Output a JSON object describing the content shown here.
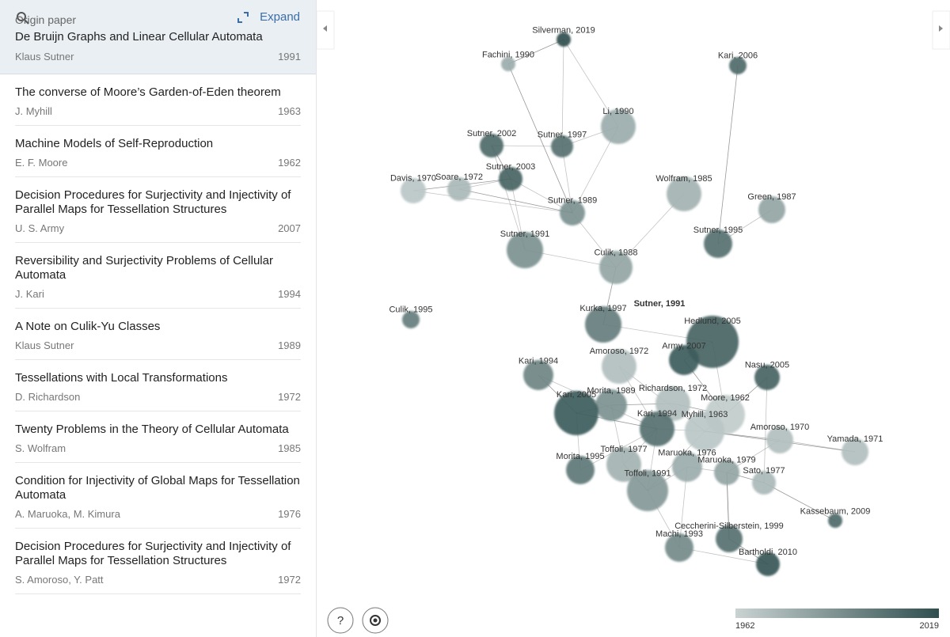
{
  "origin_paper": {
    "label": "Origin paper",
    "expand": "Expand",
    "title": "De Bruijn Graphs and Linear Cellular Automata",
    "authors": "Klaus Sutner",
    "year": 1991
  },
  "papers": [
    {
      "title": "The converse of Moore’s Garden-of-Eden theorem",
      "authors": "J. Myhill",
      "year": 1963
    },
    {
      "title": "Machine Models of Self-Reproduction",
      "authors": "E. F. Moore",
      "year": 1962
    },
    {
      "title": "Decision Procedures for Surjectivity and Injectivity of Parallel Maps for Tessellation Structures",
      "authors": "U. S. Army",
      "year": 2007
    },
    {
      "title": "Reversibility and Surjectivity Problems of Cellular Automata",
      "authors": "J. Kari",
      "year": 1994
    },
    {
      "title": "A Note on Culik-Yu Classes",
      "authors": "Klaus Sutner",
      "year": 1989
    },
    {
      "title": "Tessellations with Local Transformations",
      "authors": "D. Richardson",
      "year": 1972
    },
    {
      "title": "Twenty Problems in the Theory of Cellular Automata",
      "authors": "S. Wolfram",
      "year": 1985
    },
    {
      "title": "Condition for Injectivity of Global Maps for Tessellation Automata",
      "authors": "A. Maruoka, M. Kimura",
      "year": 1976
    },
    {
      "title": "Decision Procedures for Surjectivity and Injectivity of Parallel Maps for Tessellation Structures",
      "authors": "S. Amoroso, Y. Patt",
      "year": 1972
    }
  ],
  "graph": {
    "origin_label": "Sutner, 1991",
    "nodes": [
      "Silverman, 2019",
      "Fachini, 1990",
      "Kari, 2006",
      "Li, 1990",
      "Sutner, 2002",
      "Sutner, 1997",
      "Sutner, 2003",
      "Davis, 1970",
      "Soare, 1972",
      "Wolfram, 1985",
      "Green, 1987",
      "Sutner, 1989",
      "Sutner, 1991",
      "Sutner, 1995",
      "Culik, 1988",
      "Culik, 1995",
      "Kurka, 1997",
      "Hedlund, 2005",
      "Amoroso, 1972",
      "Army, 2007",
      "Kari, 1994",
      "Nasu, 2005",
      "Morita, 1989",
      "Richardson, 1972",
      "Kari, 2005",
      "Moore, 1962",
      "Kari, 1994",
      "Myhill, 1963",
      "Amoroso, 1970",
      "Yamada, 1971",
      "Toffoli, 1977",
      "Maruoka, 1976",
      "Maruoka, 1979",
      "Morita, 1995",
      "Sato, 1977",
      "Toffoli, 1991",
      "Kassebaum, 2009",
      "Ceccherini-Silberstein, 1999",
      "Machi, 1993",
      "Bartholdi, 2010"
    ]
  },
  "help": "?",
  "legend": {
    "min": 1962,
    "max": 2019
  }
}
